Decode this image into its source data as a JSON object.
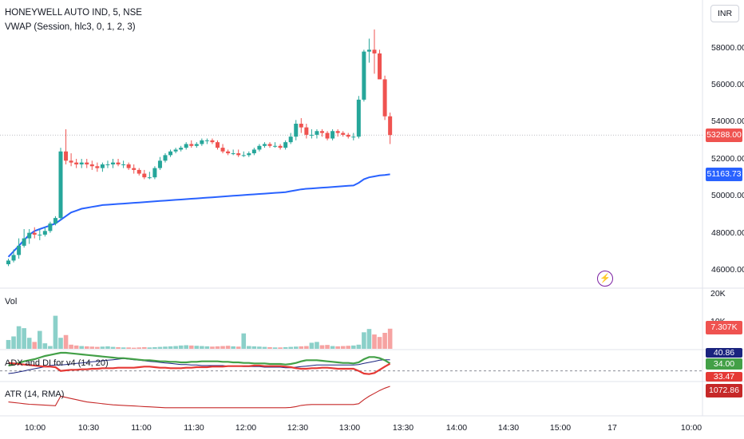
{
  "header": {
    "symbol_line": "HONEYWELL AUTO IND, 5, NSE",
    "indicator_line": "VWAP (Session, hlc3, 0, 1, 2, 3)"
  },
  "currency_button": "INR",
  "price_axis": [
    "58000.00",
    "56000.00",
    "54000.00",
    "52000.00",
    "50000.00",
    "48000.00",
    "46000.00"
  ],
  "badges": {
    "last_price": "53288.00",
    "vwap": "51163.73",
    "volume": "7.307K",
    "adx": "40.86",
    "di_plus": "34.00",
    "di_minus": "33.47",
    "atr": "1072.86"
  },
  "volume_axis": [
    "20K",
    "10K"
  ],
  "panes": {
    "volume_label": "Vol",
    "adx_label": "ADX and DI for v4 (14, 20)",
    "atr_label": "ATR (14, RMA)"
  },
  "time_axis": [
    "10:00",
    "10:30",
    "11:00",
    "11:30",
    "12:00",
    "12:30",
    "13:00",
    "13:30",
    "14:00",
    "14:30",
    "15:00",
    "17",
    "10:00"
  ],
  "colors": {
    "up": "#26a69a",
    "down": "#ef5350",
    "vwap": "#2962ff",
    "adx": "#1a237e",
    "di_plus": "#43a047",
    "di_minus": "#e53935",
    "atr": "#c62828"
  },
  "chart_data": {
    "type": "candlestick",
    "interval_minutes": 5,
    "times": [
      "09:15",
      "09:20",
      "09:25",
      "09:30",
      "09:35",
      "09:40",
      "09:45",
      "09:50",
      "09:55",
      "10:00",
      "10:05",
      "10:10",
      "10:15",
      "10:20",
      "10:25",
      "10:30",
      "10:35",
      "10:40",
      "10:45",
      "10:50",
      "10:55",
      "11:00",
      "11:05",
      "11:10",
      "11:15",
      "11:20",
      "11:25",
      "11:30",
      "11:35",
      "11:40",
      "11:45",
      "11:50",
      "11:55",
      "12:00",
      "12:05",
      "12:10",
      "12:15",
      "12:20",
      "12:25",
      "12:30",
      "12:35",
      "12:40",
      "12:45",
      "12:50",
      "12:55",
      "13:00",
      "13:05",
      "13:10",
      "13:15",
      "13:20",
      "13:25",
      "13:30",
      "13:35",
      "13:40",
      "13:45",
      "13:50",
      "13:55",
      "14:00",
      "14:05",
      "14:10",
      "14:15",
      "14:20",
      "14:25",
      "14:30",
      "14:35",
      "14:40",
      "14:45",
      "14:50",
      "14:55",
      "15:00",
      "15:05",
      "15:10",
      "15:15",
      "15:20",
      "15:25"
    ],
    "open": [
      46300,
      46500,
      46800,
      47300,
      47700,
      48000,
      47900,
      47900,
      48100,
      48500,
      48800,
      52400,
      51900,
      51800,
      51700,
      51800,
      51700,
      51600,
      51500,
      51700,
      51700,
      51800,
      51700,
      51700,
      51500,
      51400,
      51200,
      51000,
      51000,
      51500,
      51900,
      52200,
      52400,
      52500,
      52600,
      52800,
      52700,
      52800,
      53000,
      53000,
      52900,
      52600,
      52400,
      52300,
      52300,
      52200,
      52200,
      52300,
      52500,
      52700,
      52800,
      52700,
      52700,
      52600,
      52900,
      53200,
      53900,
      53700,
      53300,
      53300,
      53500,
      53400,
      53100,
      53500,
      53400,
      53300,
      53200,
      53200,
      55200,
      57800,
      57900,
      57700,
      56300,
      54300,
      53200
    ],
    "high": [
      46600,
      47100,
      47700,
      48200,
      48200,
      48300,
      48200,
      48300,
      48600,
      48900,
      52600,
      53600,
      52300,
      52000,
      52000,
      52000,
      51900,
      51800,
      51800,
      51900,
      52000,
      52000,
      51900,
      51800,
      51700,
      51500,
      51400,
      51300,
      51600,
      52100,
      52300,
      52500,
      52600,
      52700,
      52900,
      53000,
      52900,
      53100,
      53100,
      53100,
      53000,
      52800,
      52500,
      52500,
      52500,
      52400,
      52400,
      52600,
      52800,
      52900,
      52900,
      52900,
      52800,
      53000,
      53400,
      54100,
      54200,
      53900,
      53600,
      53600,
      53600,
      53500,
      53600,
      53600,
      53500,
      53400,
      53400,
      55400,
      57900,
      58500,
      59000,
      57900,
      56500,
      54500,
      53400
    ],
    "low": [
      46200,
      46400,
      46600,
      47200,
      47400,
      47700,
      47600,
      47800,
      48000,
      48400,
      48700,
      51700,
      51600,
      51500,
      51500,
      51500,
      51400,
      51300,
      51300,
      51500,
      51500,
      51600,
      51500,
      51400,
      51200,
      51100,
      50900,
      50900,
      50900,
      51400,
      51800,
      52100,
      52300,
      52400,
      52500,
      52600,
      52600,
      52700,
      52800,
      52800,
      52500,
      52300,
      52200,
      52200,
      52100,
      52100,
      52100,
      52200,
      52400,
      52600,
      52600,
      52600,
      52500,
      52500,
      52800,
      53000,
      53400,
      53100,
      53100,
      53100,
      53200,
      53000,
      53000,
      53200,
      53200,
      53100,
      53000,
      53100,
      55100,
      57200,
      56600,
      56400,
      54100,
      52800,
      52900
    ],
    "close": [
      46500,
      46800,
      47300,
      47700,
      48000,
      47900,
      47900,
      48100,
      48500,
      48800,
      52400,
      51900,
      51800,
      51700,
      51800,
      51700,
      51600,
      51500,
      51700,
      51700,
      51800,
      51700,
      51700,
      51500,
      51400,
      51200,
      51000,
      51000,
      51500,
      51900,
      52200,
      52400,
      52500,
      52600,
      52800,
      52700,
      52800,
      53000,
      53000,
      52900,
      52600,
      52400,
      52300,
      52300,
      52200,
      52200,
      52300,
      52500,
      52700,
      52800,
      52700,
      52700,
      52600,
      52900,
      53200,
      53900,
      53700,
      53300,
      53300,
      53500,
      53400,
      53100,
      53500,
      53400,
      53300,
      53200,
      53200,
      55200,
      57800,
      57900,
      57700,
      56300,
      54300,
      53288,
      53288
    ],
    "vwap": [
      46700,
      47000,
      47300,
      47600,
      47900,
      48100,
      48200,
      48300,
      48400,
      48500,
      48700,
      48900,
      49100,
      49200,
      49300,
      49350,
      49400,
      49450,
      49500,
      49520,
      49540,
      49560,
      49580,
      49600,
      49620,
      49640,
      49660,
      49680,
      49700,
      49720,
      49740,
      49760,
      49780,
      49800,
      49820,
      49840,
      49860,
      49880,
      49900,
      49920,
      49940,
      49960,
      49980,
      50000,
      50020,
      50040,
      50060,
      50080,
      50100,
      50120,
      50140,
      50160,
      50180,
      50200,
      50250,
      50300,
      50350,
      50380,
      50400,
      50420,
      50440,
      50460,
      50480,
      50500,
      50520,
      50540,
      50560,
      50700,
      50900,
      51000,
      51050,
      51100,
      51130,
      51163.73,
      51163.73
    ],
    "volume": [
      3200,
      4500,
      8200,
      7500,
      4000,
      2500,
      6500,
      2000,
      1000,
      12000,
      4000,
      5000,
      1500,
      1200,
      1000,
      900,
      800,
      700,
      800,
      900,
      700,
      600,
      500,
      500,
      400,
      500,
      600,
      500,
      600,
      700,
      800,
      900,
      1000,
      1200,
      1300,
      1200,
      1100,
      1000,
      900,
      800,
      900,
      1000,
      1100,
      900,
      800,
      5600,
      1000,
      900,
      800,
      700,
      600,
      500,
      500,
      600,
      700,
      800,
      900,
      1000,
      2200,
      2500,
      1300,
      1400,
      1000,
      900,
      1000,
      1100,
      1200,
      1500,
      6000,
      7200,
      5200,
      4300,
      5800,
      7307,
      7307
    ],
    "adx": [
      15,
      16,
      18,
      20,
      22,
      24,
      26,
      28,
      30,
      31,
      31,
      32,
      33,
      34,
      35,
      36,
      37,
      38,
      39,
      40,
      41,
      42,
      43,
      42,
      41,
      40,
      39,
      38,
      37,
      36,
      35,
      34,
      33,
      32,
      32,
      31,
      31,
      30,
      30,
      30,
      30,
      30,
      29,
      29,
      29,
      28,
      28,
      28,
      28,
      27,
      27,
      27,
      27,
      26,
      26,
      27,
      28,
      29,
      30,
      31,
      31,
      31,
      31,
      31,
      31,
      31,
      31,
      32,
      34,
      36,
      38,
      40,
      41,
      40.86,
      40.86
    ],
    "di_plus": [
      30,
      32,
      35,
      38,
      40,
      42,
      45,
      48,
      50,
      52,
      54,
      54,
      53,
      52,
      51,
      50,
      49,
      48,
      47,
      46,
      45,
      44,
      44,
      43,
      42,
      41,
      40,
      40,
      39,
      38,
      38,
      37,
      37,
      36,
      36,
      37,
      37,
      38,
      38,
      38,
      38,
      37,
      37,
      36,
      36,
      35,
      35,
      34,
      34,
      34,
      33,
      33,
      33,
      32,
      33,
      35,
      38,
      40,
      40,
      40,
      39,
      38,
      37,
      36,
      35,
      35,
      34,
      36,
      42,
      46,
      46,
      44,
      40,
      34.0,
      34.0
    ],
    "di_minus": [
      35,
      34,
      33,
      32,
      31,
      30,
      29,
      28,
      28,
      27,
      20,
      21,
      22,
      22,
      23,
      23,
      24,
      24,
      25,
      25,
      25,
      26,
      26,
      26,
      26,
      27,
      28,
      28,
      27,
      26,
      26,
      25,
      25,
      25,
      26,
      26,
      27,
      27,
      27,
      28,
      28,
      28,
      29,
      29,
      29,
      29,
      29,
      30,
      30,
      29,
      29,
      29,
      29,
      28,
      27,
      25,
      24,
      24,
      25,
      25,
      26,
      26,
      25,
      24,
      24,
      24,
      24,
      20,
      15,
      14,
      16,
      22,
      28,
      33.47,
      33.47
    ],
    "atr": [
      800,
      790,
      780,
      770,
      760,
      755,
      750,
      745,
      740,
      735,
      900,
      880,
      860,
      840,
      820,
      800,
      790,
      780,
      770,
      760,
      750,
      745,
      740,
      735,
      730,
      725,
      720,
      715,
      710,
      705,
      700,
      700,
      700,
      700,
      700,
      700,
      700,
      700,
      700,
      700,
      700,
      700,
      700,
      700,
      700,
      700,
      700,
      700,
      700,
      700,
      700,
      700,
      700,
      700,
      705,
      720,
      740,
      750,
      755,
      755,
      755,
      755,
      755,
      755,
      755,
      755,
      755,
      770,
      840,
      900,
      950,
      1000,
      1040,
      1072.86,
      1072.86
    ]
  }
}
